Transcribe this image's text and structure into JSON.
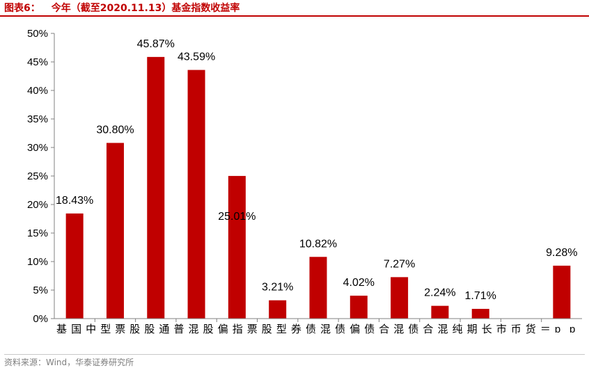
{
  "figure": {
    "label": "图表6：",
    "title": "今年（截至2020.11.13）基金指数收益率",
    "source": "资料来源：Wind，华泰证券研究所"
  },
  "colors": {
    "bar": "#c00000",
    "axis": "#808080",
    "title": "#c00000"
  },
  "chart_data": {
    "type": "bar",
    "title": "今年（截至2020.11.13）基金指数收益率",
    "xlabel": "",
    "ylabel": "",
    "ylim": [
      0,
      50
    ],
    "y_ticks": [
      "0%",
      "5%",
      "10%",
      "15%",
      "20%",
      "25%",
      "30%",
      "35%",
      "40%",
      "45%",
      "50%"
    ],
    "tick_label_text": "基国中型票股股通普混股偏指票股型券债混债偏债合混债合混纯期长市币货＝ɒɒ",
    "categories": [
      "基国中型",
      "票股",
      "股通普",
      "混股偏",
      "指票股型",
      "券债",
      "混债偏",
      "债合",
      "混债合",
      "混纯",
      "期长",
      "市币货",
      "＝ɒɒ"
    ],
    "values": [
      18.43,
      30.8,
      45.87,
      43.59,
      25.01,
      3.21,
      10.82,
      4.02,
      7.27,
      2.24,
      1.71,
      0,
      9.28
    ],
    "data_labels": [
      "18.43%",
      "30.80%",
      "45.87%",
      "43.59%",
      "25.01%",
      "3.21%",
      "10.82%",
      "4.02%",
      "7.27%",
      "2.24%",
      "1.71%",
      "",
      "9.28%"
    ],
    "grid": false
  }
}
